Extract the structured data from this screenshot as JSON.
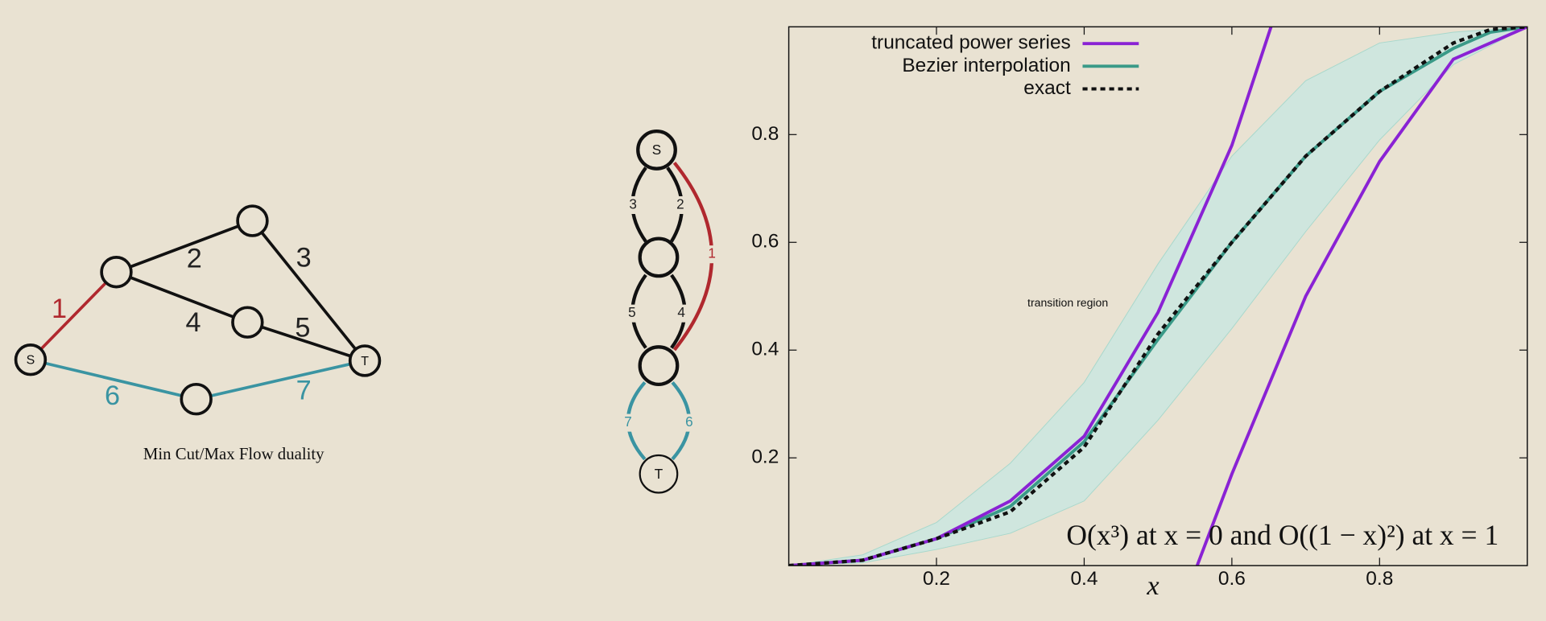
{
  "graph": {
    "source": "S",
    "sink": "T",
    "edge_weights": [
      1,
      2,
      3,
      4,
      5,
      6,
      7
    ],
    "caption": "Min Cut/Max Flow duality"
  },
  "dual_graph": {
    "source": "S",
    "sink": "T",
    "edge_weights": [
      3,
      2,
      5,
      4,
      7,
      6,
      1
    ]
  },
  "chart_data": {
    "type": "line",
    "x": [
      0,
      0.1,
      0.2,
      0.3,
      0.4,
      0.5,
      0.6,
      0.7,
      0.8,
      0.9,
      0.95,
      1
    ],
    "series": [
      {
        "name": "truncated power series",
        "color": "#8a22d4",
        "x": [
          0,
          0.1,
          0.2,
          0.3,
          0.4,
          0.5,
          0.6,
          0.653,
          null,
          0.553,
          0.6,
          0.7,
          0.8,
          0.9,
          1
        ],
        "values": [
          0,
          0.01,
          0.05,
          0.12,
          0.24,
          0.47,
          0.78,
          1.0,
          null,
          0,
          0.17,
          0.5,
          0.75,
          0.94,
          1
        ]
      },
      {
        "name": "Bezier interpolation",
        "color": "#3a9a88",
        "values": [
          0,
          0.01,
          0.05,
          0.11,
          0.23,
          0.42,
          0.6,
          0.76,
          0.88,
          0.96,
          0.99,
          1
        ]
      },
      {
        "name": "exact",
        "color": "#111111",
        "dashed": true,
        "values": [
          0,
          0.01,
          0.05,
          0.1,
          0.22,
          0.43,
          0.6,
          0.76,
          0.88,
          0.97,
          0.995,
          1
        ]
      }
    ],
    "band": {
      "color": "#cfe6de",
      "x": [
        0,
        0.1,
        0.2,
        0.3,
        0.4,
        0.5,
        0.6,
        0.7,
        0.8,
        0.9,
        1
      ],
      "low": [
        0,
        0.005,
        0.03,
        0.06,
        0.12,
        0.27,
        0.44,
        0.62,
        0.79,
        0.93,
        1
      ],
      "high": [
        0,
        0.02,
        0.08,
        0.19,
        0.34,
        0.56,
        0.76,
        0.9,
        0.97,
        0.99,
        1
      ]
    },
    "xlim": [
      0,
      1
    ],
    "ylim": [
      0,
      1
    ],
    "xticks": [
      0.2,
      0.4,
      0.6,
      0.8
    ],
    "yticks": [
      0.2,
      0.4,
      0.6,
      0.8
    ],
    "x_label": "x",
    "legend": "upper left",
    "annotations": [
      "transition region",
      "O(x³) at x = 0 and O((1 − x)²) at x = 1"
    ]
  }
}
